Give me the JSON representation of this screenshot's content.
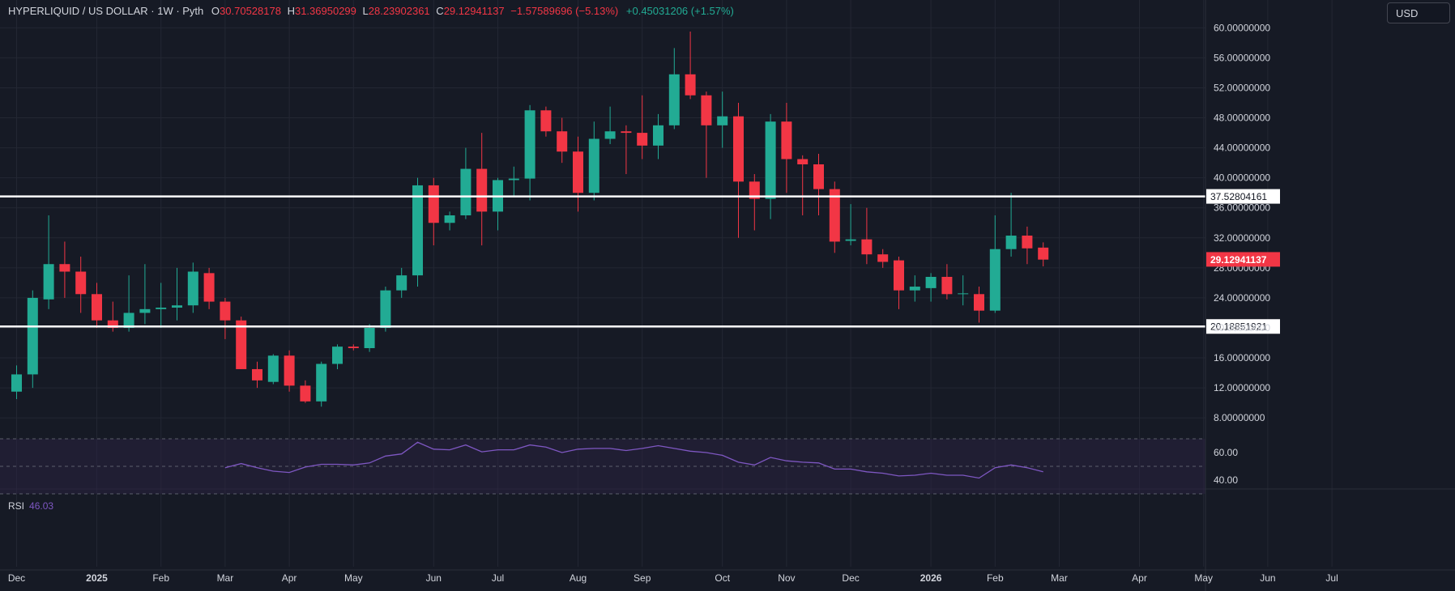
{
  "header": {
    "symbol": "HYPERLIQUID / US DOLLAR · 1W · Pyth",
    "o_label": "O",
    "o_value": "30.70528178",
    "h_label": "H",
    "h_value": "31.36950299",
    "l_label": "L",
    "l_value": "28.23902361",
    "c_label": "C",
    "c_value": "29.12941137",
    "change": "−1.57589696 (−5.13%)",
    "ext_change": "+0.45031206 (+1.57%)"
  },
  "currency": "USD",
  "colors": {
    "up": "#22ab94",
    "down": "#f23645",
    "background": "#161a25",
    "grid": "#232733",
    "text": "#d1d4dc",
    "rsi_line": "#7e57c2",
    "rsi_band": "#2a2340",
    "hline": "#ffffff"
  },
  "rsi": {
    "label": "RSI",
    "value": "46.03",
    "ticks": [
      "60.00",
      "40.00"
    ]
  },
  "chart_data": {
    "type": "candlestick",
    "ylim": [
      6,
      62
    ],
    "yticks": [
      8,
      12,
      16,
      20,
      24,
      28,
      32,
      36,
      40,
      44,
      48,
      52,
      56,
      60
    ],
    "ytick_labels": [
      "8.00000000",
      "12.00000000",
      "16.00000000",
      "20.00000000",
      "24.00000000",
      "28.00000000",
      "32.00000000",
      "36.00000000",
      "40.00000000",
      "44.00000000",
      "48.00000000",
      "52.00000000",
      "56.00000000",
      "60.00000000"
    ],
    "x_labels": [
      {
        "label": "Dec",
        "week": 0
      },
      {
        "label": "2025",
        "week": 5
      },
      {
        "label": "Feb",
        "week": 9
      },
      {
        "label": "Mar",
        "week": 13
      },
      {
        "label": "Apr",
        "week": 17
      },
      {
        "label": "May",
        "week": 21
      },
      {
        "label": "Jun",
        "week": 26
      },
      {
        "label": "Jul",
        "week": 30
      },
      {
        "label": "Aug",
        "week": 35
      },
      {
        "label": "Sep",
        "week": 39
      },
      {
        "label": "Oct",
        "week": 44
      },
      {
        "label": "Nov",
        "week": 48
      },
      {
        "label": "Dec",
        "week": 52
      },
      {
        "label": "2026",
        "week": 57
      },
      {
        "label": "Feb",
        "week": 61
      },
      {
        "label": "Mar",
        "week": 65
      },
      {
        "label": "Apr",
        "week": 70
      },
      {
        "label": "May",
        "week": 74
      },
      {
        "label": "Jun",
        "week": 78
      },
      {
        "label": "Jul",
        "week": 82
      }
    ],
    "horizontal_levels": [
      {
        "value": 37.52804161,
        "label": "37.52804161"
      },
      {
        "value": 20.18851921,
        "label": "20.18851921"
      }
    ],
    "last_price": {
      "value": 29.12941137,
      "label": "29.12941137"
    },
    "candles": [
      {
        "o": 11.5,
        "h": 15.0,
        "l": 10.5,
        "c": 13.8
      },
      {
        "o": 13.8,
        "h": 25.0,
        "l": 12.0,
        "c": 24.0
      },
      {
        "o": 23.8,
        "h": 35.0,
        "l": 22.5,
        "c": 28.5
      },
      {
        "o": 28.5,
        "h": 31.5,
        "l": 24.0,
        "c": 27.5
      },
      {
        "o": 27.5,
        "h": 29.5,
        "l": 22.0,
        "c": 24.5
      },
      {
        "o": 24.5,
        "h": 26.0,
        "l": 20.0,
        "c": 21.0
      },
      {
        "o": 21.0,
        "h": 23.5,
        "l": 19.5,
        "c": 20.0
      },
      {
        "o": 20.0,
        "h": 27.0,
        "l": 19.5,
        "c": 22.0
      },
      {
        "o": 22.0,
        "h": 28.5,
        "l": 20.5,
        "c": 22.5
      },
      {
        "o": 22.5,
        "h": 26.0,
        "l": 20.0,
        "c": 22.7
      },
      {
        "o": 22.7,
        "h": 28.0,
        "l": 21.0,
        "c": 23.0
      },
      {
        "o": 23.0,
        "h": 28.7,
        "l": 22.0,
        "c": 27.5
      },
      {
        "o": 27.3,
        "h": 28.0,
        "l": 22.5,
        "c": 23.5
      },
      {
        "o": 23.5,
        "h": 24.0,
        "l": 18.5,
        "c": 21.0
      },
      {
        "o": 21.0,
        "h": 21.5,
        "l": 14.5,
        "c": 14.5
      },
      {
        "o": 14.5,
        "h": 15.5,
        "l": 12.0,
        "c": 13.0
      },
      {
        "o": 12.8,
        "h": 16.5,
        "l": 12.5,
        "c": 16.3
      },
      {
        "o": 16.3,
        "h": 17.0,
        "l": 11.5,
        "c": 12.3
      },
      {
        "o": 12.3,
        "h": 13.0,
        "l": 10.0,
        "c": 10.2
      },
      {
        "o": 10.2,
        "h": 15.5,
        "l": 9.5,
        "c": 15.2
      },
      {
        "o": 15.2,
        "h": 17.8,
        "l": 14.5,
        "c": 17.5
      },
      {
        "o": 17.5,
        "h": 17.8,
        "l": 17.0,
        "c": 17.3
      },
      {
        "o": 17.3,
        "h": 20.5,
        "l": 16.8,
        "c": 20.0
      },
      {
        "o": 20.0,
        "h": 25.5,
        "l": 19.5,
        "c": 25.0
      },
      {
        "o": 25.0,
        "h": 28.0,
        "l": 24.0,
        "c": 27.0
      },
      {
        "o": 27.0,
        "h": 40.0,
        "l": 25.5,
        "c": 39.0
      },
      {
        "o": 39.0,
        "h": 40.0,
        "l": 31.0,
        "c": 34.0
      },
      {
        "o": 34.0,
        "h": 35.5,
        "l": 33.0,
        "c": 35.0
      },
      {
        "o": 35.0,
        "h": 44.0,
        "l": 34.5,
        "c": 41.2
      },
      {
        "o": 41.2,
        "h": 46.0,
        "l": 31.0,
        "c": 35.5
      },
      {
        "o": 35.5,
        "h": 40.0,
        "l": 33.0,
        "c": 39.7
      },
      {
        "o": 39.7,
        "h": 41.5,
        "l": 37.5,
        "c": 39.9
      },
      {
        "o": 39.9,
        "h": 49.7,
        "l": 37.0,
        "c": 49.0
      },
      {
        "o": 49.0,
        "h": 49.5,
        "l": 45.5,
        "c": 46.2
      },
      {
        "o": 46.2,
        "h": 48.0,
        "l": 42.0,
        "c": 43.5
      },
      {
        "o": 43.5,
        "h": 45.5,
        "l": 35.5,
        "c": 38.0
      },
      {
        "o": 38.0,
        "h": 47.5,
        "l": 37.0,
        "c": 45.2
      },
      {
        "o": 45.2,
        "h": 49.5,
        "l": 44.5,
        "c": 46.2
      },
      {
        "o": 46.2,
        "h": 47.0,
        "l": 40.5,
        "c": 46.0
      },
      {
        "o": 46.0,
        "h": 51.0,
        "l": 42.5,
        "c": 44.3
      },
      {
        "o": 44.3,
        "h": 48.5,
        "l": 42.5,
        "c": 47.0
      },
      {
        "o": 47.0,
        "h": 57.3,
        "l": 46.5,
        "c": 53.8
      },
      {
        "o": 53.8,
        "h": 59.5,
        "l": 50.5,
        "c": 51.0
      },
      {
        "o": 51.0,
        "h": 51.5,
        "l": 40.0,
        "c": 47.0
      },
      {
        "o": 47.0,
        "h": 51.5,
        "l": 44.0,
        "c": 48.2
      },
      {
        "o": 48.2,
        "h": 50.0,
        "l": 32.0,
        "c": 39.5
      },
      {
        "o": 39.5,
        "h": 40.5,
        "l": 33.0,
        "c": 37.2
      },
      {
        "o": 37.2,
        "h": 48.5,
        "l": 34.5,
        "c": 47.5
      },
      {
        "o": 47.5,
        "h": 50.0,
        "l": 38.0,
        "c": 42.5
      },
      {
        "o": 42.5,
        "h": 43.0,
        "l": 35.0,
        "c": 41.8
      },
      {
        "o": 41.8,
        "h": 43.2,
        "l": 35.0,
        "c": 38.5
      },
      {
        "o": 38.5,
        "h": 39.5,
        "l": 30.0,
        "c": 31.5
      },
      {
        "o": 31.6,
        "h": 36.5,
        "l": 31.0,
        "c": 31.8
      },
      {
        "o": 31.8,
        "h": 36.0,
        "l": 28.5,
        "c": 29.8
      },
      {
        "o": 29.8,
        "h": 30.5,
        "l": 28.0,
        "c": 28.8
      },
      {
        "o": 29.0,
        "h": 29.5,
        "l": 22.5,
        "c": 25.0
      },
      {
        "o": 25.0,
        "h": 27.0,
        "l": 23.5,
        "c": 25.5
      },
      {
        "o": 25.3,
        "h": 27.3,
        "l": 23.5,
        "c": 26.8
      },
      {
        "o": 26.8,
        "h": 28.5,
        "l": 23.8,
        "c": 24.5
      },
      {
        "o": 24.5,
        "h": 27.0,
        "l": 23.0,
        "c": 24.6
      },
      {
        "o": 24.5,
        "h": 25.5,
        "l": 20.7,
        "c": 22.3
      },
      {
        "o": 22.3,
        "h": 35.0,
        "l": 22.0,
        "c": 30.5
      },
      {
        "o": 30.5,
        "h": 38.0,
        "l": 29.5,
        "c": 32.3
      },
      {
        "o": 32.3,
        "h": 33.5,
        "l": 28.5,
        "c": 30.6
      },
      {
        "o": 30.7,
        "h": 31.4,
        "l": 28.2,
        "c": 29.1
      }
    ],
    "rsi_values": [
      null,
      null,
      null,
      null,
      null,
      null,
      null,
      null,
      null,
      null,
      null,
      null,
      null,
      49.0,
      52.0,
      49.0,
      46.5,
      45.5,
      49.5,
      51.5,
      51.5,
      51.0,
      52.5,
      57.5,
      59.0,
      67.5,
      62.5,
      62.0,
      65.5,
      60.5,
      62.0,
      62.0,
      65.5,
      64.0,
      60.0,
      62.5,
      63.0,
      63.0,
      61.5,
      63.0,
      65.0,
      63.0,
      61.0,
      60.0,
      58.0,
      53.0,
      51.0,
      56.5,
      54.0,
      53.0,
      52.5,
      48.0,
      48.0,
      46.0,
      45.0,
      43.0,
      43.5,
      45.0,
      43.5,
      43.5,
      41.5,
      49.0,
      51.0,
      49.0,
      46.0
    ]
  }
}
